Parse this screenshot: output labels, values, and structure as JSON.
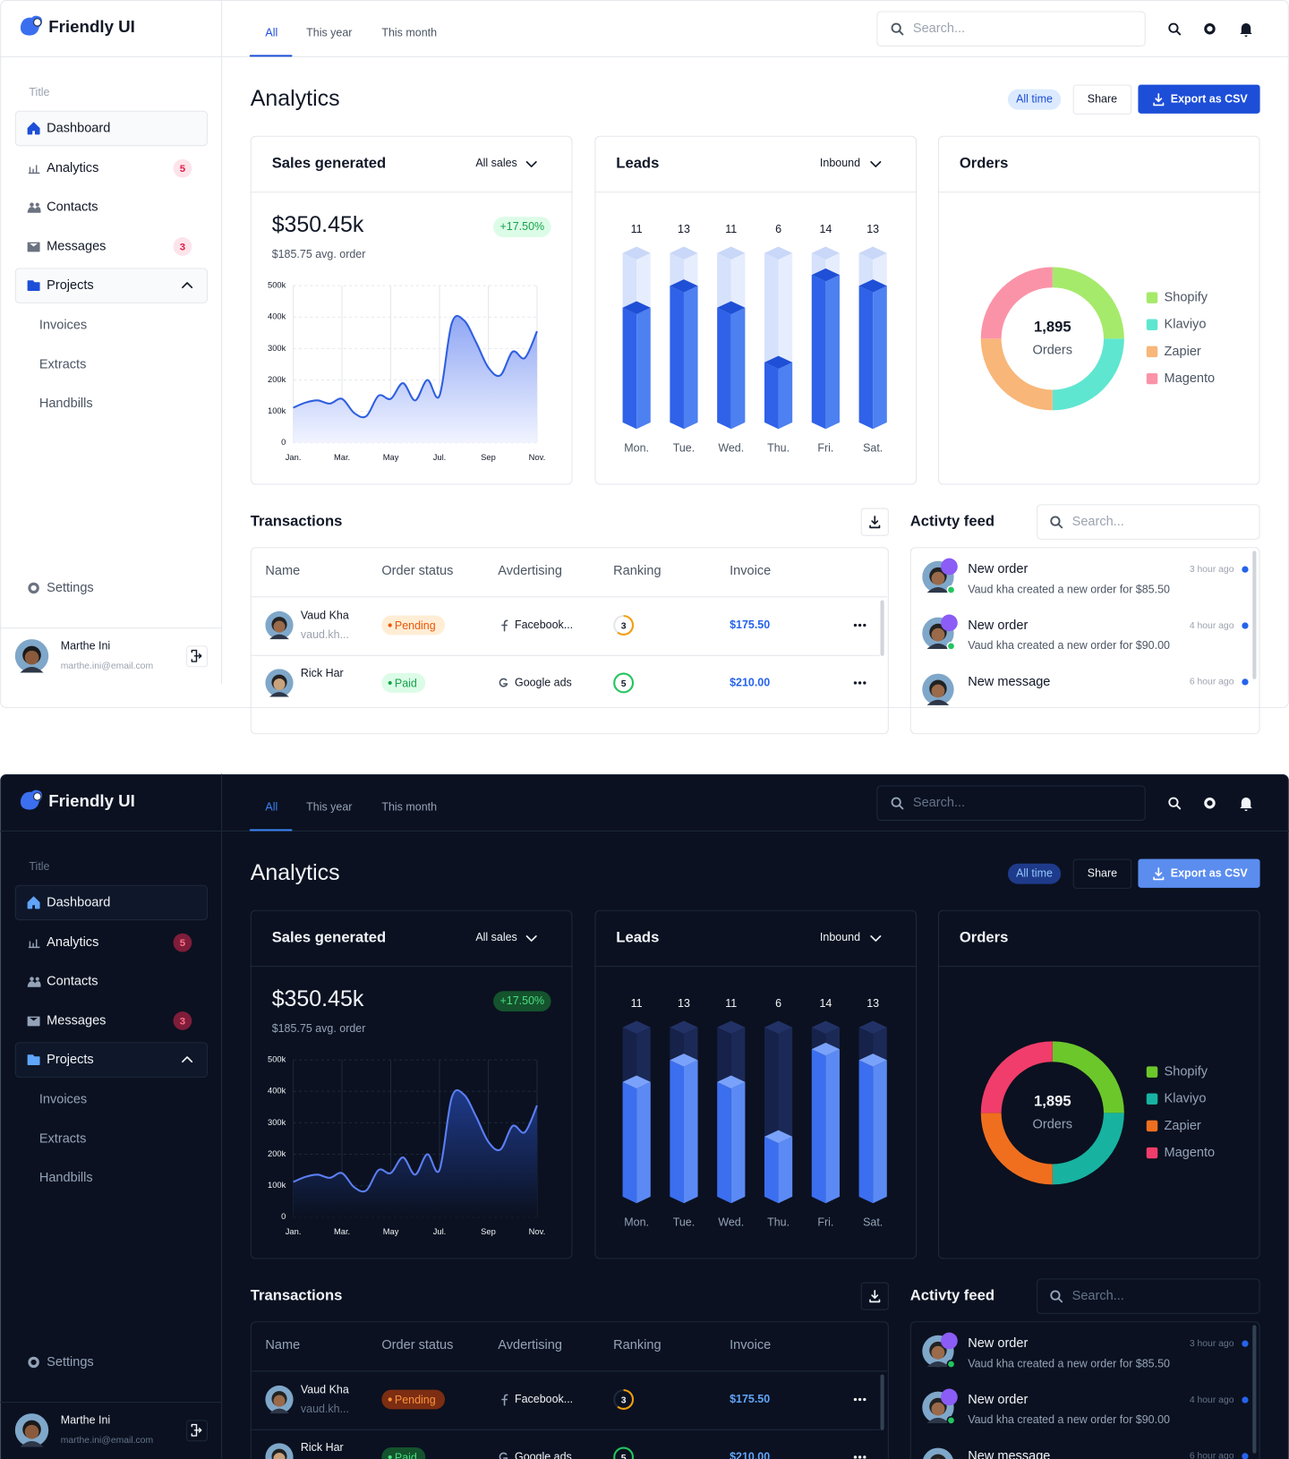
{
  "brand": "Friendly UI",
  "tabs": [
    "All",
    "This year",
    "This month"
  ],
  "search_placeholder": "Search...",
  "sidebar": {
    "section_title": "Title",
    "items": [
      {
        "label": "Dashboard"
      },
      {
        "label": "Analytics",
        "badge": 5
      },
      {
        "label": "Contacts"
      },
      {
        "label": "Messages",
        "badge": 3
      },
      {
        "label": "Projects"
      }
    ],
    "subitems": [
      "Invoices",
      "Extracts",
      "Handbills"
    ],
    "settings": "Settings",
    "user": {
      "name": "Marthe Ini",
      "email": "marthe.ini@email.com"
    }
  },
  "page_title": "Analytics",
  "actions": {
    "filter": "All time",
    "share": "Share",
    "export": "Export as CSV"
  },
  "chart_data": [
    {
      "type": "line",
      "title": "Sales generated",
      "filter": "All sales",
      "total": "$350.45k",
      "change": "+17.50%",
      "subtitle": "$185.75 avg. order",
      "categories": [
        "Jan.",
        null,
        null,
        null,
        "Mar.",
        null,
        null,
        null,
        "May",
        null,
        null,
        null,
        "Jul.",
        null,
        null,
        null,
        "Sep",
        null,
        null,
        null,
        "Nov."
      ],
      "values": [
        112000,
        128000,
        135000,
        125000,
        140000,
        95000,
        85000,
        150000,
        140000,
        190000,
        135000,
        200000,
        150000,
        380000,
        390000,
        320000,
        240000,
        215000,
        290000,
        270000,
        355000
      ],
      "ylim": [
        0,
        500000
      ],
      "yticks": [
        0,
        {
          "value": 100000,
          "label": "100k"
        },
        {
          "value": 200000,
          "label": "200k"
        },
        {
          "value": 300000,
          "label": "300k"
        },
        {
          "value": 400000,
          "label": "400k"
        },
        {
          "value": 500000,
          "label": "500k"
        }
      ],
      "grid": true
    },
    {
      "type": "bar",
      "title": "Leads",
      "filter": "Inbound",
      "categories": [
        "Mon.",
        "Tue.",
        "Wed.",
        "Thu.",
        "Fri.",
        "Sat."
      ],
      "values": [
        11,
        13,
        11,
        6,
        14,
        13
      ],
      "ylim": [
        0,
        16
      ]
    },
    {
      "type": "donut",
      "title": "Orders",
      "center_value": "1,895",
      "center_caption": "Orders",
      "categories": [
        "Shopify",
        "Klaviyo",
        "Zapier",
        "Magento"
      ],
      "values": [
        25,
        25,
        25,
        25
      ],
      "colors": {
        "light": [
          "#a6ea6c",
          "#5fe6d0",
          "#f8b679",
          "#fb93a8"
        ],
        "dark": [
          "#6cc72b",
          "#17b3a0",
          "#f06f1f",
          "#f13d6b"
        ]
      }
    }
  ],
  "transactions": {
    "title": "Transactions",
    "columns": [
      "Name",
      "Order status",
      "Avdertising",
      "Ranking",
      "Invoice"
    ],
    "rows": [
      {
        "name": "Vaud Kha",
        "handle": "vaud.kh...",
        "status": "Pending",
        "advertising": "Facebook...",
        "ranking": 3,
        "invoice": "$175.50"
      },
      {
        "name": "Rick Har",
        "status": "Paid",
        "advertising": "Google ads",
        "ranking": 5,
        "invoice": "$210.00"
      }
    ]
  },
  "activity": {
    "title": "Activty feed",
    "search_placeholder": "Search...",
    "items": [
      {
        "title": "New order",
        "text": "Vaud kha created a new order for $85.50",
        "time": "3 hour ago"
      },
      {
        "title": "New order",
        "text": "Vaud kha created a new order for $90.00",
        "time": "4 hour ago"
      },
      {
        "title": "New message",
        "time": "6 hour ago"
      }
    ]
  }
}
